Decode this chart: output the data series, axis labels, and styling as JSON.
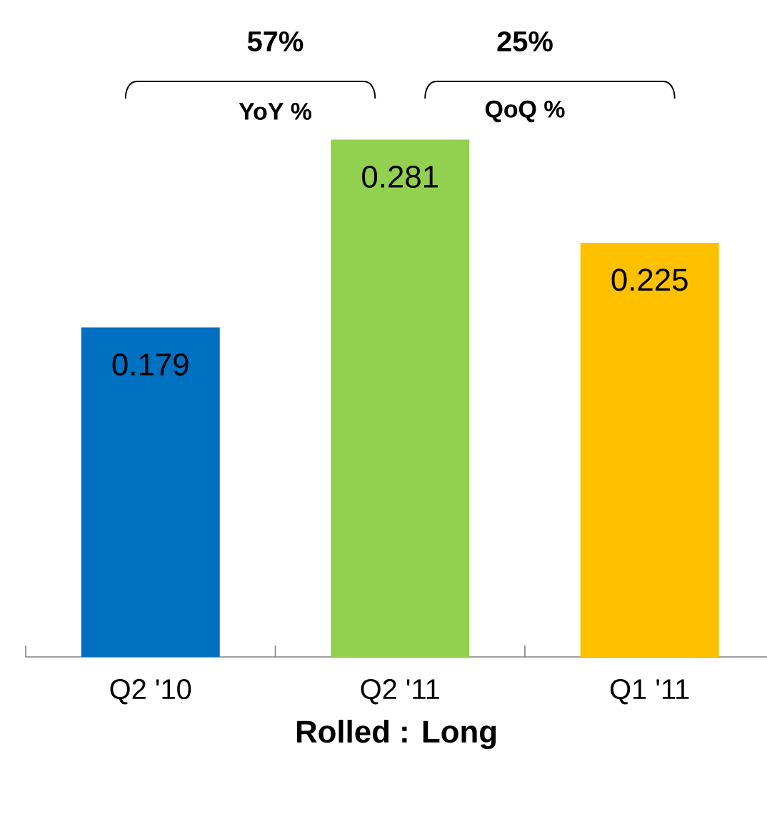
{
  "chart_data": {
    "type": "bar",
    "xlabel": "**Rolled : Long**",
    "categories": [
      "Q2 '10",
      "Q2 '11",
      "Q1 '11"
    ],
    "values": [
      0.179,
      0.281,
      0.225
    ],
    "colors": [
      "#0070c0",
      "#92d050",
      "#ffc000"
    ],
    "data_labels": true,
    "annotations": [
      "**57%**",
      "**YoY %**",
      "**25%**",
      "**QoQ %**"
    ]
  }
}
